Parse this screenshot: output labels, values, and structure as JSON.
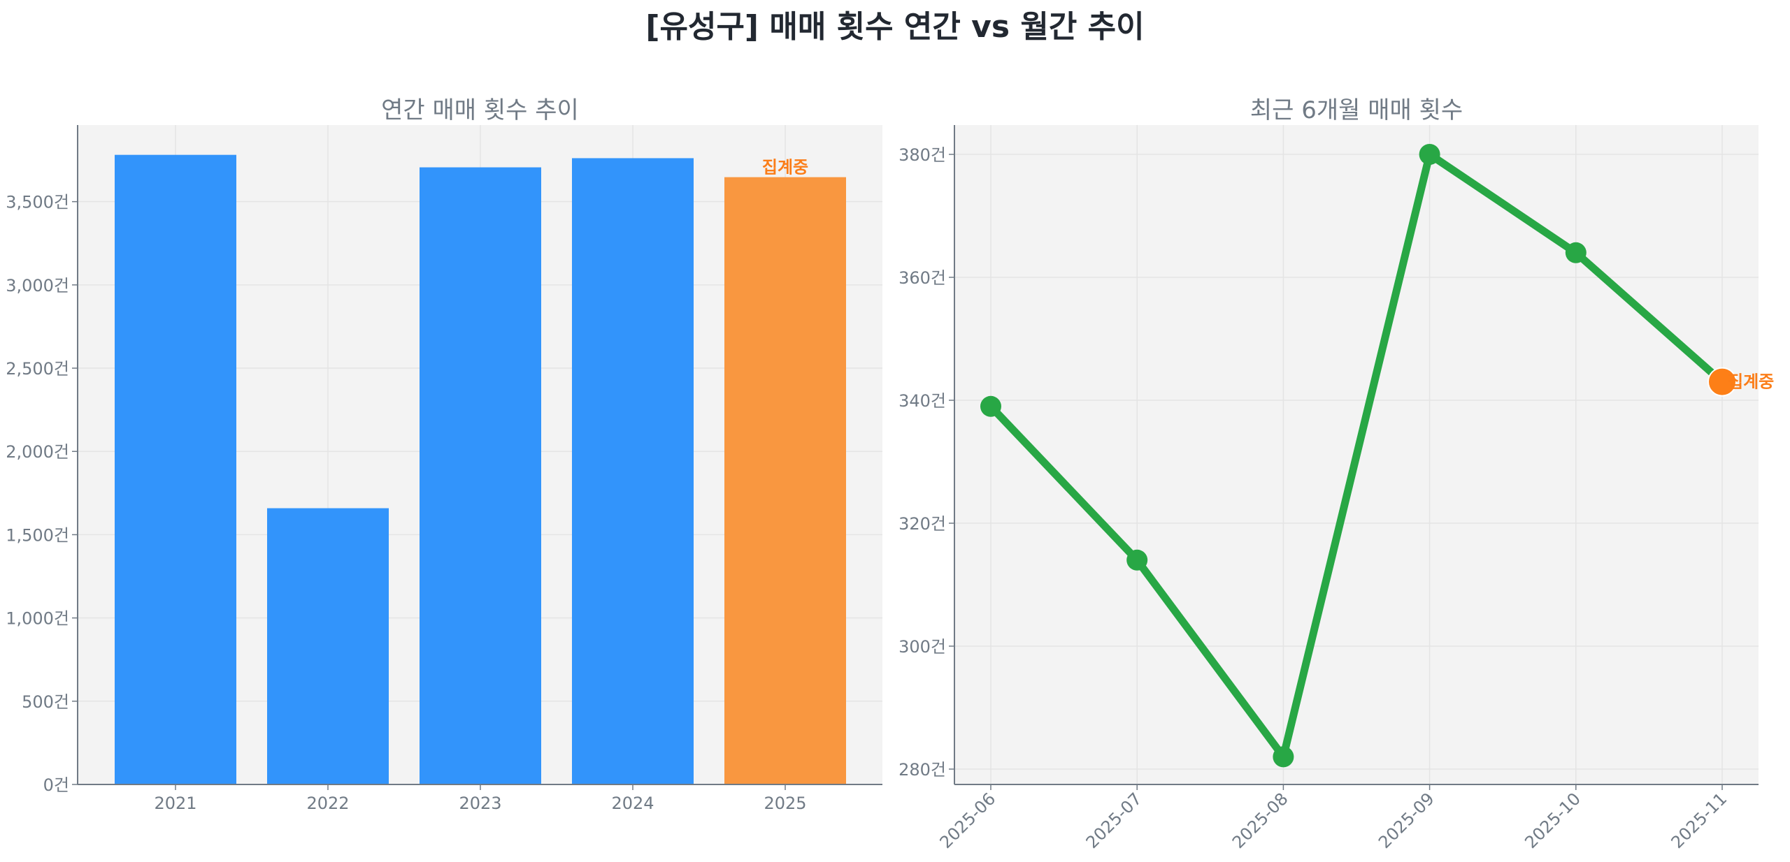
{
  "figure": {
    "title": "[유성구] 매매 횟수 연간 vs 월간 추이"
  },
  "chart_data": [
    {
      "type": "bar",
      "title": "연간 매매 횟수 추이",
      "xlabel": "",
      "ylabel": "",
      "categories": [
        "2021",
        "2022",
        "2023",
        "2024",
        "2025"
      ],
      "values": [
        3781,
        1659,
        3706,
        3761,
        3647
      ],
      "colors": [
        "#3294fb",
        "#3294fb",
        "#3294fb",
        "#3294fb",
        "#f99740"
      ],
      "ylim": [
        0,
        3960
      ],
      "yticks": [
        0,
        500,
        1000,
        1500,
        2000,
        2500,
        3000,
        3500
      ],
      "ytick_labels": [
        "0건",
        "500건",
        "1,000건",
        "1,500건",
        "2,000건",
        "2,500건",
        "3,000건",
        "3,500건"
      ],
      "grid": true,
      "annotations": [
        {
          "category": "2025",
          "text": "집계중",
          "color": "#fb7d18"
        }
      ]
    },
    {
      "type": "line",
      "title": "최근 6개월 매매 횟수",
      "xlabel": "",
      "ylabel": "",
      "x": [
        "2025-06",
        "2025-07",
        "2025-08",
        "2025-09",
        "2025-10",
        "2025-11"
      ],
      "values": [
        339,
        314,
        282,
        380,
        364,
        343
      ],
      "line_color": "#28a745",
      "highlight_last_color": "#fd7f17",
      "ylim": [
        277,
        385
      ],
      "yticks": [
        280,
        300,
        320,
        340,
        360,
        380
      ],
      "ytick_labels": [
        "280건",
        "300건",
        "320건",
        "340건",
        "360건",
        "380건"
      ],
      "xtick_rotation": 45,
      "grid": true,
      "annotations": [
        {
          "x": "2025-11",
          "text": "집계중",
          "color": "#fb7d18"
        }
      ]
    }
  ]
}
